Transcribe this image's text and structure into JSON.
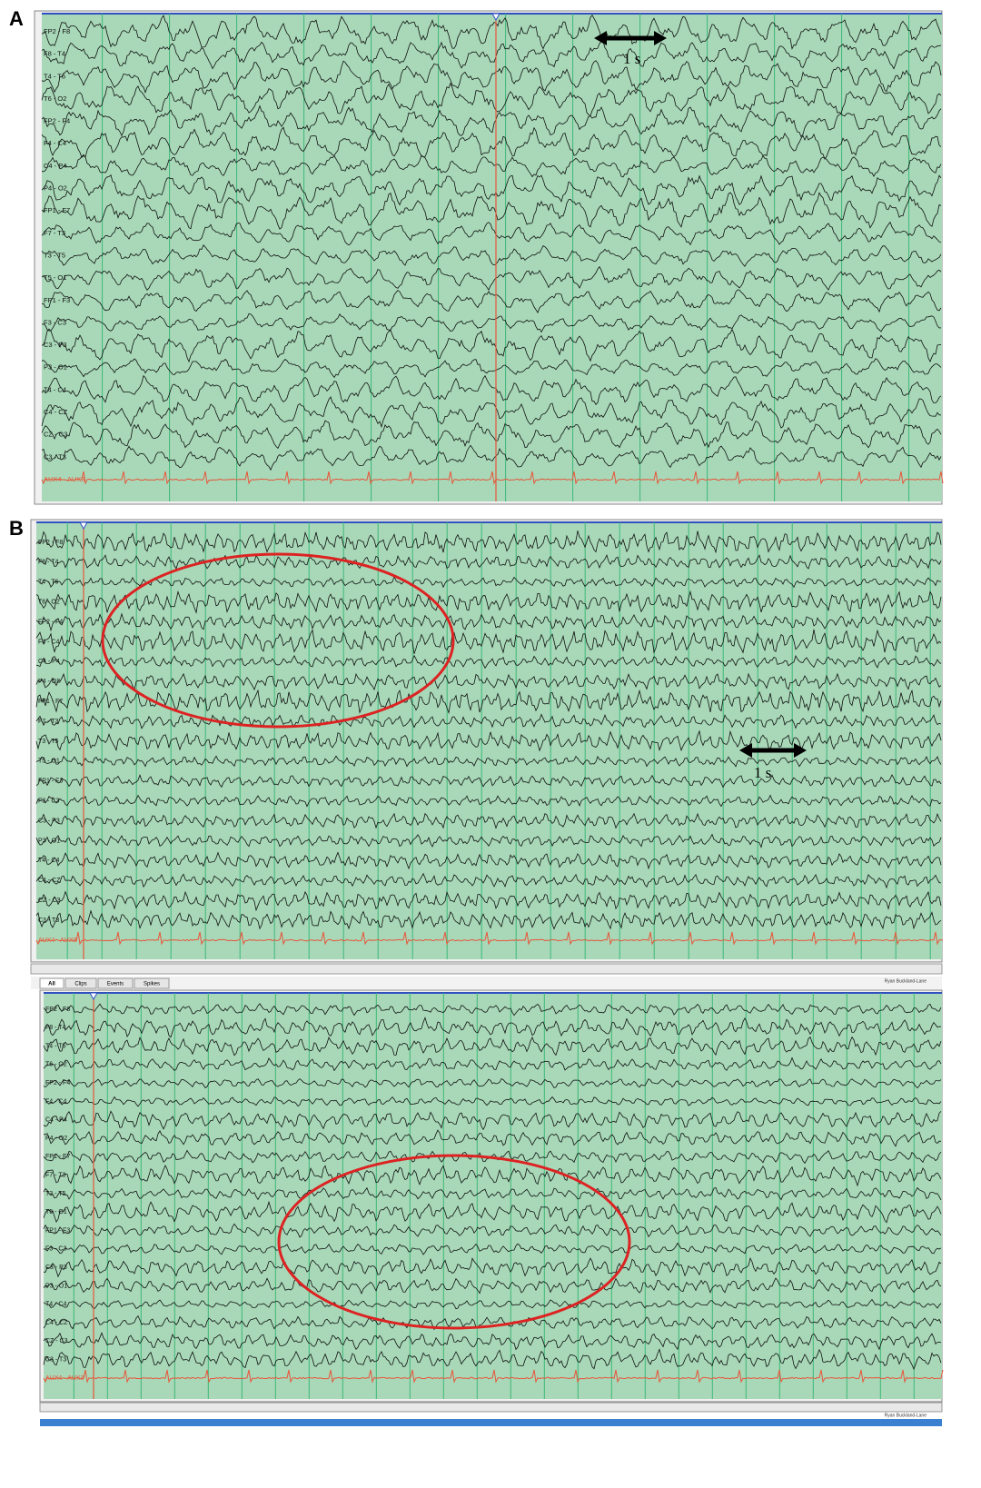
{
  "panels": [
    {
      "label": "A",
      "scale_label": "1 s"
    },
    {
      "label": "B",
      "scale_label": "1 s"
    }
  ],
  "montage": [
    "FP2 - F8",
    "F8 - T4",
    "T4 - T6",
    "T6 - O2",
    "FP2 - F4",
    "F4 - C4",
    "C4 - P4",
    "P4 - O2",
    "FP1 - F7",
    "F7 - T3",
    "T3 - T5",
    "T5 - O1",
    "FP1 - F3",
    "F3 - C3",
    "C3 - P3",
    "P3 - O1",
    "T4 - C4",
    "C4 - CZ",
    "CZ - C3",
    "C3 - T3",
    "AUX4 - AUX3"
  ],
  "tabs": [
    "All",
    "Clips",
    "Events",
    "Spikes"
  ],
  "status": "Ryan Buckland-Lane"
}
